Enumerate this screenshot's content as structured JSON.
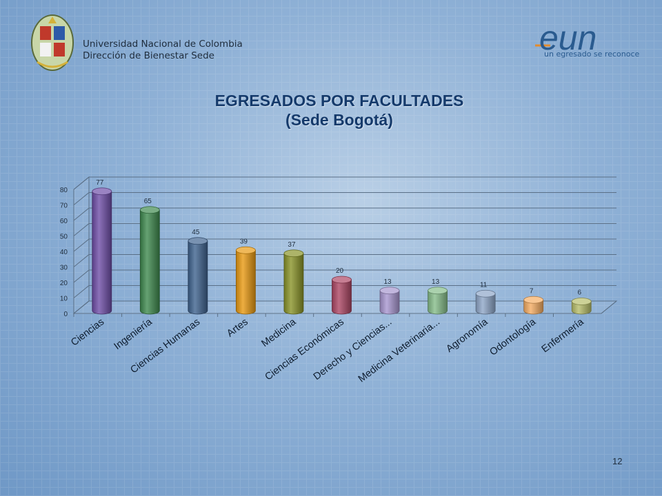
{
  "header": {
    "institution_line1": "Universidad Nacional de Colombia",
    "institution_line2": "Dirección de Bienestar Sede",
    "brand_logo_text": "eun",
    "brand_tagline": "un egresado se reconoce"
  },
  "slide": {
    "page_number": "12"
  },
  "chart_data": {
    "type": "bar",
    "title": "EGRESADOS POR FACULTADES",
    "subtitle": "(Sede Bogotá)",
    "categories": [
      "Ciencias",
      "Ingeniería",
      "Ciencias Humanas",
      "Artes",
      "Medicina",
      "Ciencias Económicas",
      "Derecho y Ciencias...",
      "Medicina Veterinaria...",
      "Agronomía",
      "Odontología",
      "Enfermería"
    ],
    "values": [
      77,
      65,
      45,
      39,
      37,
      20,
      13,
      13,
      11,
      7,
      6
    ],
    "colors": [
      "#6f4ea8",
      "#3f8a4f",
      "#3f638f",
      "#e89a12",
      "#8a9428",
      "#ad4664",
      "#a796cf",
      "#86bd8a",
      "#8ea6c8",
      "#f5ad63",
      "#b7bd6a"
    ],
    "ylim": [
      0,
      80
    ],
    "yticks": [
      0,
      10,
      20,
      30,
      40,
      50,
      60,
      70,
      80
    ],
    "grid": true,
    "style": "3d-cylinder"
  }
}
